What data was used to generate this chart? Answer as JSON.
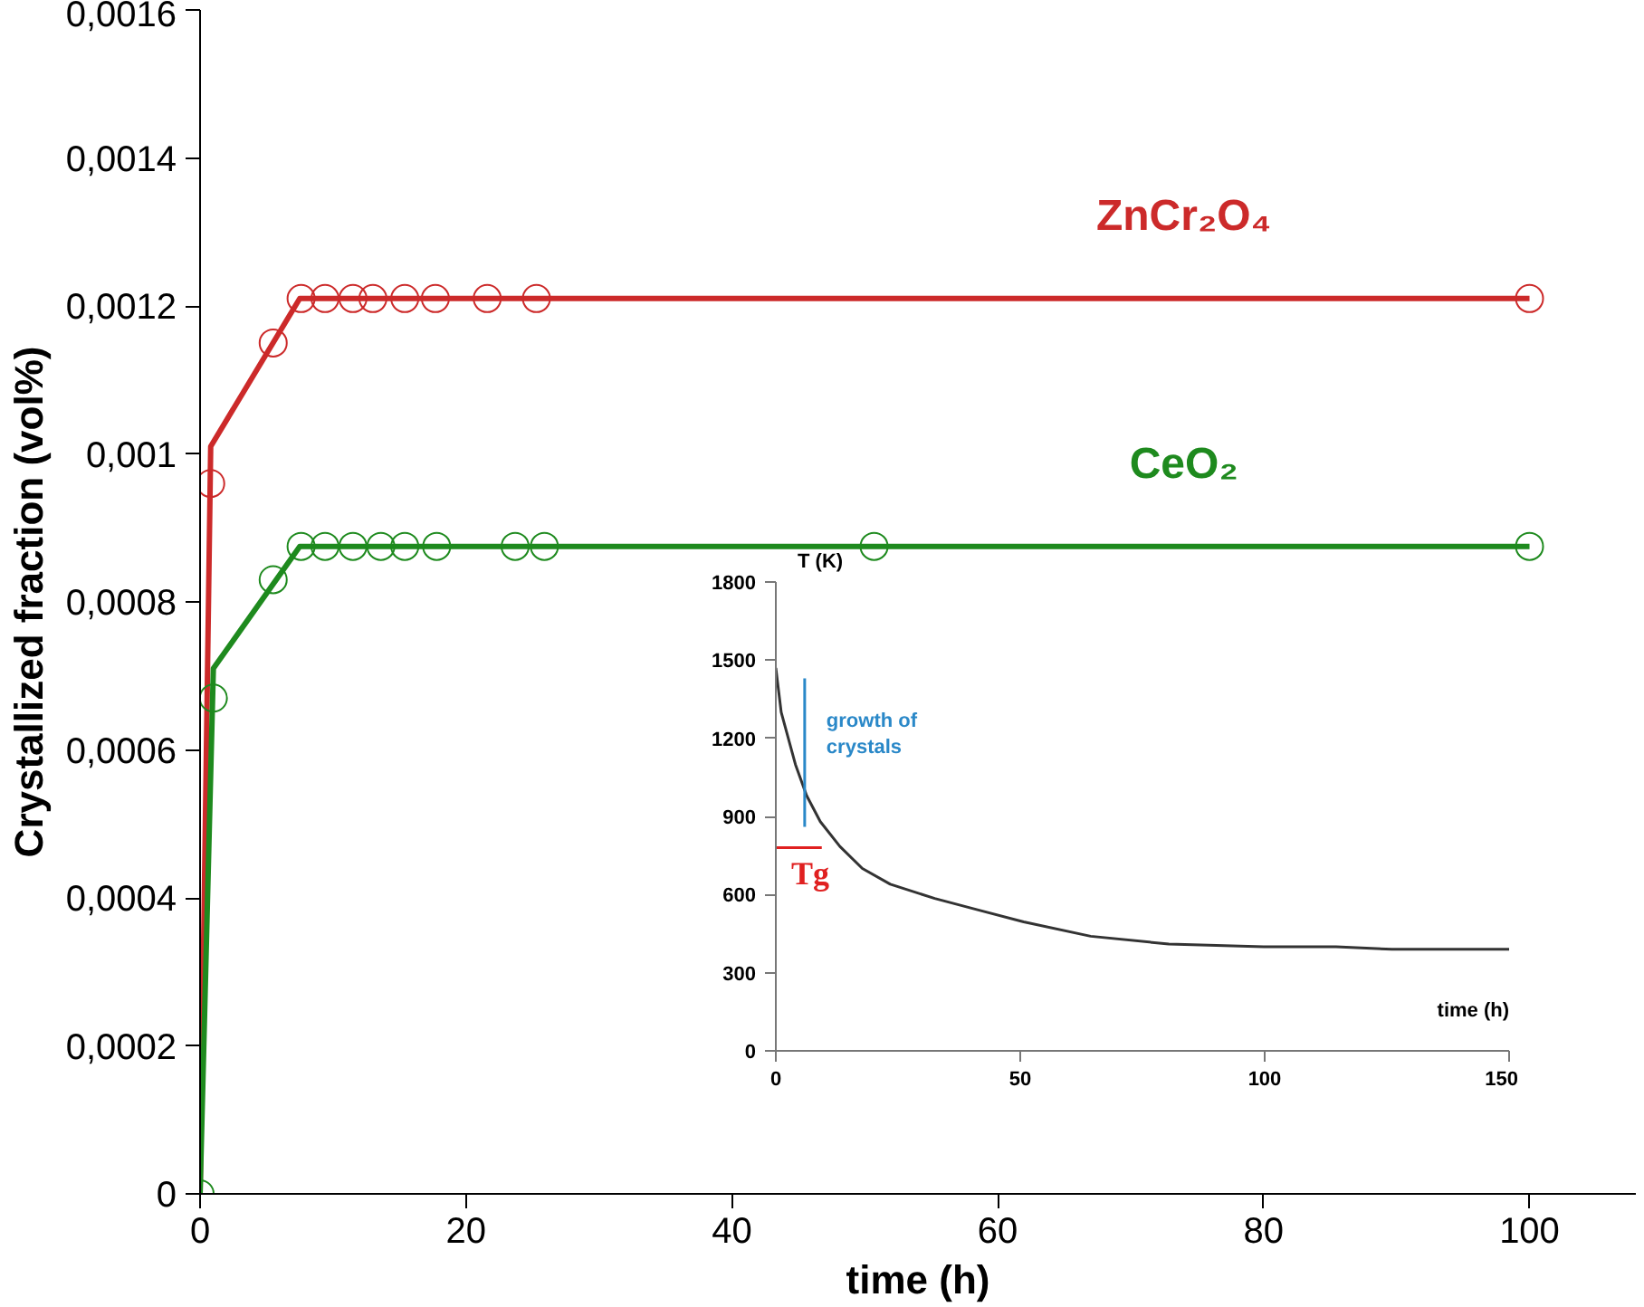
{
  "chart_data": [
    {
      "type": "line",
      "xlabel": "time (h)",
      "ylabel": "Crystallized fraction (vol%)",
      "xlim": [
        0,
        108
      ],
      "ylim": [
        0,
        0.0016
      ],
      "xticks": [
        0,
        20,
        40,
        60,
        80,
        100
      ],
      "yticks": [
        0,
        {
          "value": 0.0002,
          "label": "0,0002"
        },
        {
          "value": 0.0004,
          "label": "0,0004"
        },
        {
          "value": 0.0006,
          "label": "0,0006"
        },
        {
          "value": 0.0008,
          "label": "0,0008"
        },
        {
          "value": 0.001,
          "label": "0,001"
        },
        {
          "value": 0.0012,
          "label": "0,0012"
        },
        {
          "value": 0.0014,
          "label": "0,0014"
        },
        {
          "value": 0.0016,
          "label": "0,0016"
        }
      ],
      "grid": false,
      "marker": "circle",
      "series": [
        {
          "color": "#cc2a2a",
          "marker": "none",
          "x": [
            0,
            0.8,
            7.5,
            100
          ],
          "values": [
            0,
            0.00101,
            0.00121,
            0.00121
          ]
        },
        {
          "type": "scatter",
          "name": "ZnCr₂O₄",
          "color": "#cc2a2a",
          "x": [
            0.8,
            5.5,
            7.6,
            9.4,
            11.5,
            13.0,
            15.4,
            17.7,
            21.6,
            25.3,
            100
          ],
          "values": [
            0.00096,
            0.00115,
            0.00121,
            0.00121,
            0.00121,
            0.00121,
            0.00121,
            0.00121,
            0.00121,
            0.00121,
            0.00121
          ]
        },
        {
          "color": "#1e8a1e",
          "marker": "none",
          "x": [
            0,
            1.0,
            7.5,
            100
          ],
          "values": [
            0,
            0.00071,
            0.000875,
            0.000875
          ]
        },
        {
          "type": "scatter",
          "name": "CeO₂",
          "color": "#1e8a1e",
          "x": [
            0,
            1.0,
            5.5,
            7.6,
            9.4,
            11.5,
            13.6,
            15.4,
            17.8,
            23.7,
            25.9,
            50.7,
            100
          ],
          "values": [
            0,
            0.00067,
            0.00083,
            0.000875,
            0.000875,
            0.000875,
            0.000875,
            0.000875,
            0.000875,
            0.000875,
            0.000875,
            0.000875,
            0.000875
          ]
        }
      ]
    },
    {
      "type": "line",
      "xlabel": "time (h)",
      "ylabel": "T (K)",
      "xlim": [
        0,
        150
      ],
      "ylim": [
        0,
        1800
      ],
      "xticks": [
        0,
        50,
        100,
        150
      ],
      "yticks": [
        0,
        300,
        600,
        900,
        1200,
        1500,
        1800
      ],
      "grid": false,
      "series": [
        {
          "color": "#333333",
          "x": [
            0,
            1.1,
            4,
            6.3,
            9.1,
            13.1,
            17.7,
            23.4,
            32.5,
            41.6,
            50.7,
            64.4,
            80.4,
            99.8,
            114.6,
            126,
            150
          ],
          "values": [
            1470,
            1300,
            1100,
            980,
            880,
            785,
            700,
            640,
            585,
            540,
            495,
            440,
            410,
            400,
            400,
            390,
            390
          ]
        },
        {
          "name": "growth of crystals",
          "color": "#2a88c8",
          "x": [
            5.9,
            5.9
          ],
          "values": [
            860,
            1430
          ]
        },
        {
          "name": "Tg",
          "color": "#e02020",
          "x": [
            0,
            9.4
          ],
          "values": [
            780,
            780
          ]
        }
      ]
    }
  ]
}
